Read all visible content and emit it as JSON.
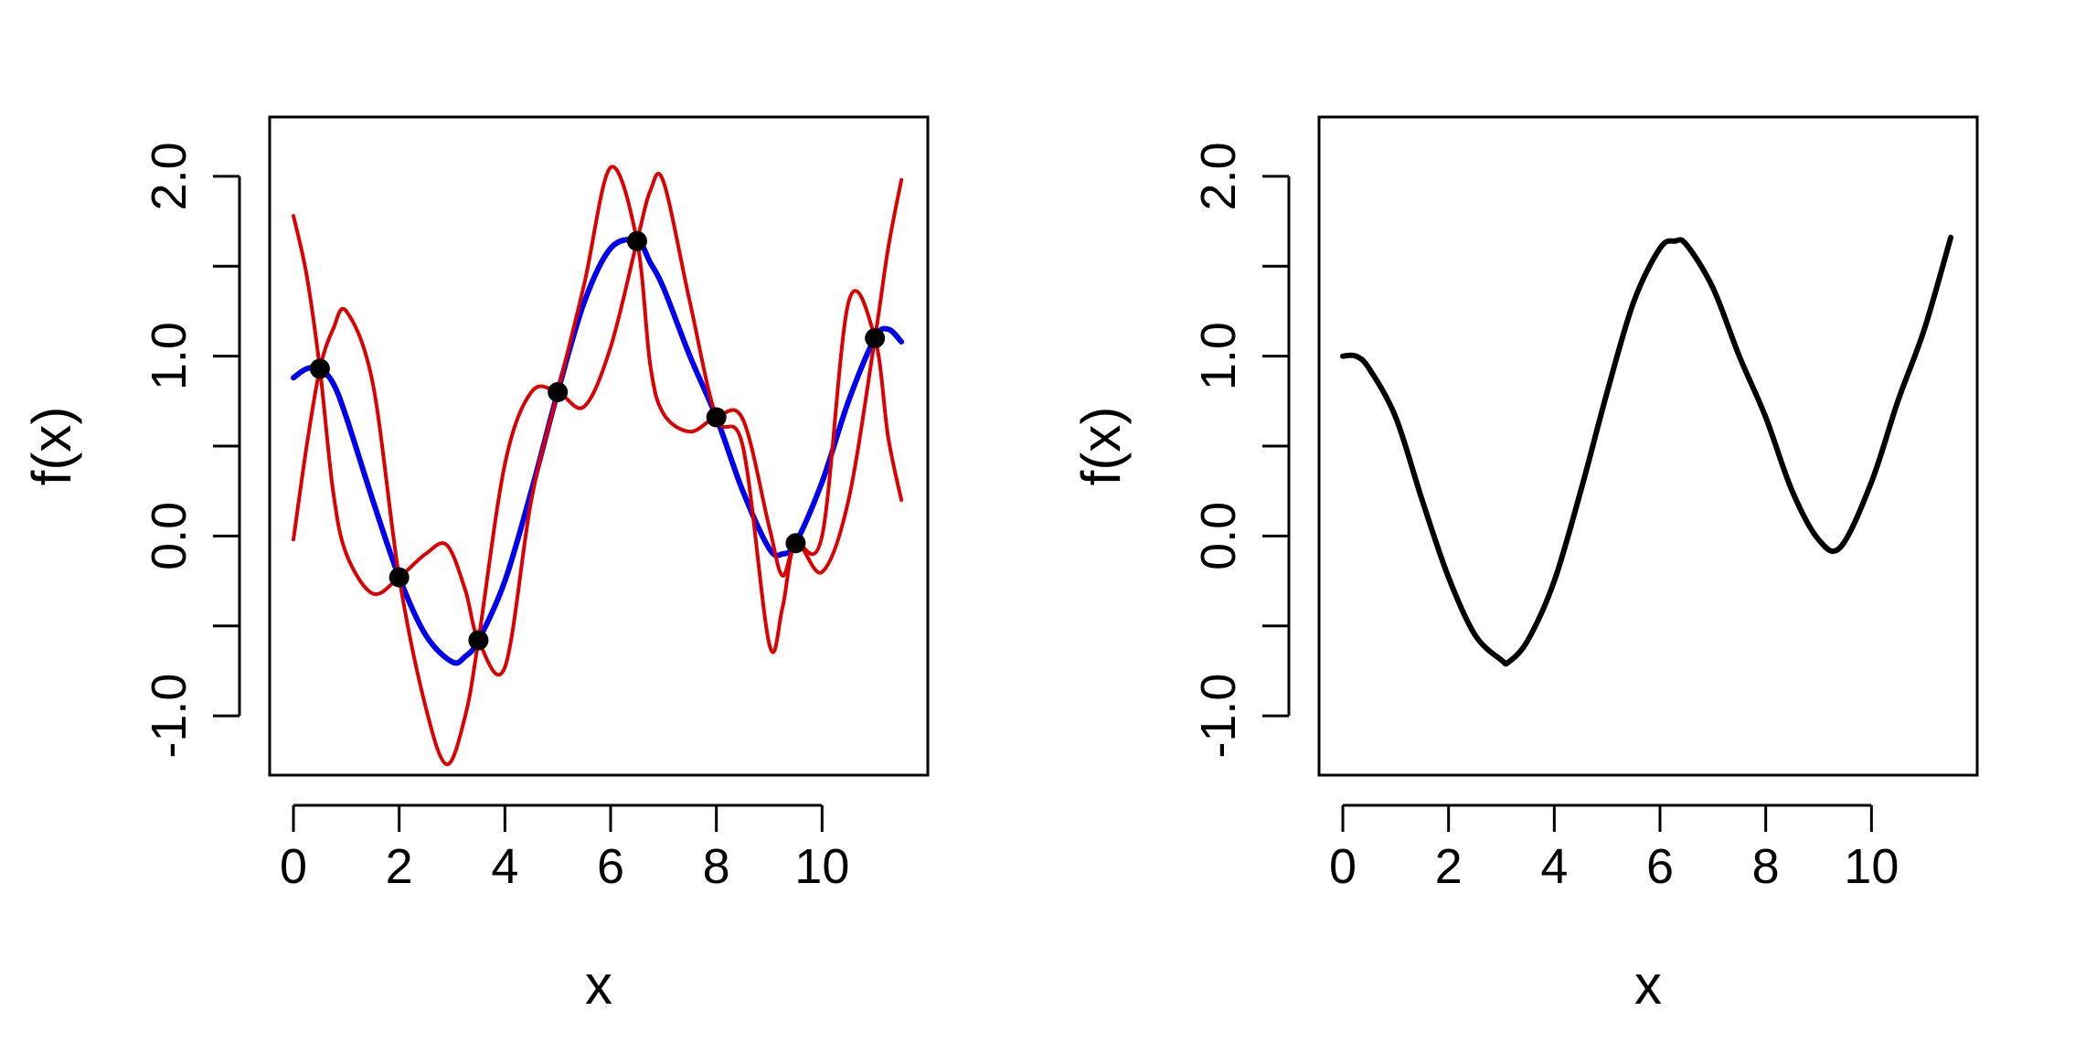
{
  "chart_data": [
    {
      "type": "line",
      "xlabel": "x",
      "ylabel": "f(x)",
      "xlim": [
        -0.45,
        12.0
      ],
      "ylim": [
        -1.33,
        2.33
      ],
      "xticks": [
        0,
        2,
        4,
        6,
        8,
        10
      ],
      "xtick_labels": [
        "0",
        "2",
        "4",
        "6",
        "8",
        "10"
      ],
      "yticks": [
        -1.0,
        -0.5,
        0.0,
        0.5,
        1.0,
        1.5,
        2.0
      ],
      "ytick_labels": [
        "-1.0",
        "",
        "0.0",
        "",
        "1.0",
        "",
        "2.0"
      ],
      "grid": false,
      "legend": "none",
      "points": {
        "x": [
          0.5,
          2.0,
          3.5,
          5.0,
          6.5,
          8.0,
          9.5,
          11.0
        ],
        "y": [
          0.93,
          -0.23,
          -0.58,
          0.8,
          1.64,
          0.66,
          -0.04,
          1.1
        ],
        "color": "#000000"
      },
      "series": [
        {
          "color": "#0000ee",
          "x": [
            0,
            0.25,
            0.5,
            0.75,
            1.0,
            1.5,
            2.0,
            2.5,
            3.0,
            3.25,
            3.5,
            4.0,
            4.5,
            5.0,
            5.5,
            6.0,
            6.5,
            6.75,
            7.0,
            7.5,
            8.0,
            8.5,
            9.0,
            9.25,
            9.5,
            10.0,
            10.5,
            11.0,
            11.25,
            11.5
          ],
          "y": [
            0.88,
            0.93,
            0.93,
            0.85,
            0.66,
            0.2,
            -0.23,
            -0.55,
            -0.7,
            -0.67,
            -0.58,
            -0.25,
            0.25,
            0.8,
            1.3,
            1.6,
            1.64,
            1.52,
            1.38,
            1.0,
            0.66,
            0.25,
            -0.07,
            -0.1,
            -0.04,
            0.3,
            0.75,
            1.1,
            1.15,
            1.08
          ]
        },
        {
          "color": "#dd0000",
          "x": [
            0,
            0.25,
            0.5,
            0.75,
            1.0,
            1.5,
            2.0,
            2.5,
            2.9,
            3.25,
            3.5,
            4.0,
            4.5,
            5.0,
            5.5,
            6.0,
            6.5,
            6.75,
            7.0,
            7.5,
            8.0,
            8.5,
            9.0,
            9.25,
            9.5,
            10.0,
            10.5,
            11.0,
            11.25,
            11.5
          ],
          "y": [
            1.78,
            1.45,
            0.93,
            0.25,
            -0.1,
            -0.32,
            -0.23,
            -0.1,
            -0.05,
            -0.3,
            -0.58,
            -0.73,
            0.2,
            0.8,
            1.4,
            2.05,
            1.64,
            0.95,
            0.68,
            0.58,
            0.66,
            0.65,
            0.05,
            -0.22,
            -0.04,
            0.0,
            1.3,
            1.1,
            0.55,
            0.2
          ]
        },
        {
          "color": "#dd0000",
          "x": [
            0,
            0.25,
            0.5,
            0.75,
            1.0,
            1.5,
            2.0,
            2.5,
            2.9,
            3.25,
            3.5,
            4.0,
            4.5,
            5.0,
            5.5,
            6.0,
            6.5,
            6.75,
            7.0,
            7.5,
            8.0,
            8.5,
            9.0,
            9.25,
            9.5,
            10.0,
            10.5,
            11.0,
            11.25,
            11.5
          ],
          "y": [
            -0.02,
            0.5,
            0.93,
            1.15,
            1.25,
            0.85,
            -0.23,
            -0.95,
            -1.27,
            -1.0,
            -0.58,
            0.4,
            0.8,
            0.8,
            0.72,
            1.05,
            1.64,
            1.92,
            1.97,
            1.3,
            0.66,
            0.5,
            -0.6,
            -0.4,
            -0.04,
            -0.2,
            0.2,
            1.1,
            1.6,
            1.98
          ]
        }
      ]
    },
    {
      "type": "line",
      "xlabel": "x",
      "ylabel": "f(x)",
      "xlim": [
        -0.45,
        12.0
      ],
      "ylim": [
        -1.33,
        2.33
      ],
      "xticks": [
        0,
        2,
        4,
        6,
        8,
        10
      ],
      "xtick_labels": [
        "0",
        "2",
        "4",
        "6",
        "8",
        "10"
      ],
      "yticks": [
        -1.0,
        -0.5,
        0.0,
        0.5,
        1.0,
        1.5,
        2.0
      ],
      "ytick_labels": [
        "-1.0",
        "",
        "0.0",
        "",
        "1.0",
        "",
        "2.0"
      ],
      "grid": false,
      "legend": "none",
      "series": [
        {
          "color": "#000000",
          "x": [
            0,
            0.25,
            0.5,
            1.0,
            1.5,
            2.0,
            2.5,
            3.0,
            3.14,
            3.5,
            4.0,
            4.5,
            5.0,
            5.5,
            6.0,
            6.28,
            6.5,
            7.0,
            7.5,
            8.0,
            8.5,
            9.0,
            9.42,
            10.0,
            10.5,
            11.0,
            11.5
          ],
          "y": [
            1.0,
            1.0,
            0.93,
            0.66,
            0.2,
            -0.23,
            -0.55,
            -0.69,
            -0.7,
            -0.58,
            -0.25,
            0.25,
            0.8,
            1.3,
            1.6,
            1.64,
            1.62,
            1.38,
            1.0,
            0.66,
            0.25,
            -0.02,
            -0.06,
            0.3,
            0.75,
            1.15,
            1.66
          ]
        }
      ]
    }
  ]
}
